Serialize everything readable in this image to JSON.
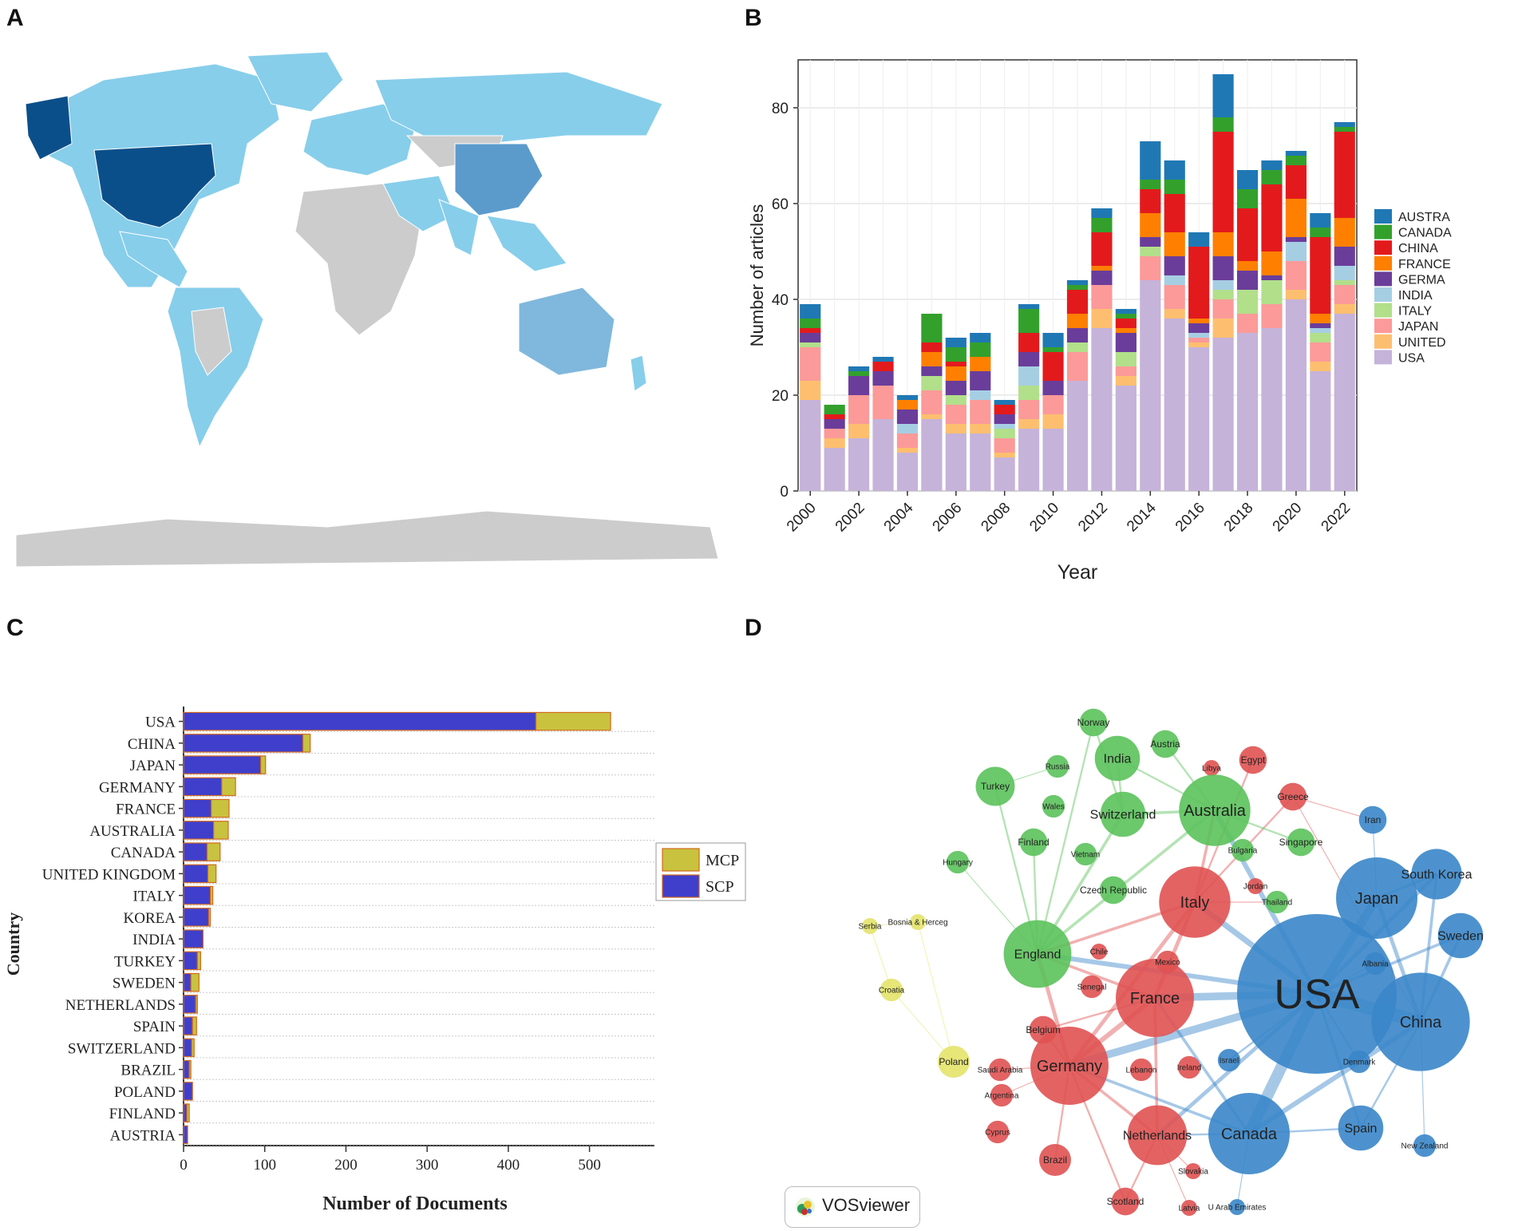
{
  "panels": {
    "a": "A",
    "b": "B",
    "c": "C",
    "d": "D"
  },
  "map": {
    "colors": {
      "ocean": "#ffffff",
      "no_data": "#cccccc",
      "light": "#87ceeb",
      "mid": "#7fb8dc",
      "dark": "#0b4f8a",
      "china": "#5b9bcc"
    }
  },
  "chart_data": [
    {
      "type": "bar",
      "stacked": true,
      "xlabel": "Year",
      "ylabel": "Number of articles",
      "ylim": [
        0,
        90
      ],
      "yticks": [
        0,
        20,
        40,
        60,
        80
      ],
      "xticks": [
        "2000",
        "2002",
        "2004",
        "2006",
        "2008",
        "2010",
        "2012",
        "2014",
        "2016",
        "2018",
        "2020",
        "2022"
      ],
      "categories": [
        "2000",
        "2001",
        "2002",
        "2003",
        "2004",
        "2005",
        "2006",
        "2007",
        "2008",
        "2009",
        "2010",
        "2011",
        "2012",
        "2013",
        "2014",
        "2015",
        "2016",
        "2017",
        "2018",
        "2019",
        "2020",
        "2021",
        "2022"
      ],
      "legend": "right",
      "series": [
        {
          "name": "USA",
          "color": "#c5b3d9",
          "values": [
            19,
            9,
            11,
            15,
            8,
            15,
            12,
            12,
            7,
            13,
            13,
            23,
            34,
            22,
            44,
            36,
            30,
            32,
            33,
            34,
            40,
            25,
            37
          ]
        },
        {
          "name": "UNITED",
          "color": "#fdbf6f",
          "values": [
            4,
            2,
            3,
            0,
            1,
            1,
            2,
            2,
            1,
            2,
            3,
            0,
            4,
            2,
            0,
            2,
            1,
            4,
            0,
            0,
            2,
            2,
            2
          ]
        },
        {
          "name": "JAPAN",
          "color": "#fb9a99",
          "values": [
            7,
            2,
            6,
            7,
            3,
            5,
            4,
            5,
            3,
            4,
            4,
            6,
            5,
            2,
            5,
            5,
            1,
            4,
            4,
            5,
            6,
            4,
            4
          ]
        },
        {
          "name": "ITALY",
          "color": "#b2df8a",
          "values": [
            1,
            0,
            0,
            0,
            0,
            3,
            2,
            0,
            2,
            3,
            0,
            2,
            0,
            3,
            2,
            0,
            0,
            2,
            5,
            5,
            0,
            2,
            1
          ]
        },
        {
          "name": "INDIA",
          "color": "#a6cee3",
          "values": [
            0,
            0,
            0,
            0,
            2,
            0,
            0,
            2,
            1,
            4,
            0,
            0,
            0,
            0,
            0,
            2,
            1,
            2,
            0,
            0,
            4,
            1,
            3
          ]
        },
        {
          "name": "GERMA",
          "color": "#6a3d9a",
          "values": [
            2,
            2,
            4,
            3,
            3,
            2,
            3,
            4,
            2,
            3,
            3,
            3,
            3,
            4,
            2,
            4,
            2,
            5,
            4,
            1,
            1,
            1,
            4
          ]
        },
        {
          "name": "FRANCE",
          "color": "#ff7f00",
          "values": [
            0,
            0,
            0,
            0,
            2,
            3,
            3,
            3,
            0,
            0,
            0,
            3,
            1,
            1,
            5,
            5,
            1,
            5,
            2,
            5,
            8,
            2,
            6
          ]
        },
        {
          "name": "CHINA",
          "color": "#e31a1c",
          "values": [
            1,
            1,
            0,
            2,
            0,
            2,
            1,
            0,
            2,
            4,
            6,
            5,
            7,
            2,
            5,
            8,
            15,
            21,
            11,
            14,
            7,
            16,
            18
          ]
        },
        {
          "name": "CANADA",
          "color": "#33a02c",
          "values": [
            2,
            2,
            1,
            0,
            0,
            6,
            3,
            3,
            0,
            5,
            1,
            1,
            3,
            1,
            2,
            3,
            0,
            3,
            4,
            3,
            2,
            2,
            1
          ]
        },
        {
          "name": "AUSTRA",
          "color": "#1f78b4",
          "values": [
            3,
            0,
            1,
            1,
            1,
            0,
            2,
            2,
            1,
            1,
            3,
            1,
            2,
            1,
            8,
            4,
            3,
            9,
            4,
            2,
            1,
            3,
            1
          ]
        }
      ]
    },
    {
      "type": "bar",
      "orientation": "horizontal",
      "stacked": true,
      "xlabel": "Number of Documents",
      "ylabel": "Country",
      "xlim": [
        0,
        580
      ],
      "xticks": [
        0,
        100,
        200,
        300,
        400,
        500
      ],
      "categories": [
        "USA",
        "CHINA",
        "JAPAN",
        "GERMANY",
        "FRANCE",
        "AUSTRALIA",
        "CANADA",
        "UNITED KINGDOM",
        "ITALY",
        "KOREA",
        "INDIA",
        "TURKEY",
        "SWEDEN",
        "NETHERLANDS",
        "SPAIN",
        "SWITZERLAND",
        "BRAZIL",
        "POLAND",
        "FINLAND",
        "AUSTRIA"
      ],
      "legend": "right",
      "series": [
        {
          "name": "SCP",
          "color": "#3f3fcc",
          "values": [
            434,
            147,
            95,
            47,
            34,
            37,
            29,
            30,
            33,
            31,
            24,
            17,
            9,
            15,
            11,
            10,
            7,
            11,
            4,
            5
          ]
        },
        {
          "name": "MCP",
          "color": "#c9c23e",
          "values": [
            92,
            9,
            6,
            17,
            22,
            18,
            16,
            10,
            3,
            2,
            0,
            4,
            10,
            2,
            5,
            3,
            2,
            0,
            3,
            0
          ]
        }
      ]
    },
    {
      "type": "network",
      "title": "VOSviewer",
      "clusters": [
        {
          "name": "blue",
          "color": "#3a86c9"
        },
        {
          "name": "red",
          "color": "#e05252"
        },
        {
          "name": "green",
          "color": "#5bc25b"
        },
        {
          "name": "yellow",
          "color": "#e3e36a"
        }
      ],
      "nodes": [
        {
          "id": "USA",
          "label": "USA",
          "cluster": "blue",
          "weight": 100
        },
        {
          "id": "China",
          "label": "China",
          "cluster": "blue",
          "weight": 38
        },
        {
          "id": "Japan",
          "label": "Japan",
          "cluster": "blue",
          "weight": 26
        },
        {
          "id": "Canada",
          "label": "Canada",
          "cluster": "blue",
          "weight": 26
        },
        {
          "id": "SouthKorea",
          "label": "South Korea",
          "cluster": "blue",
          "weight": 10
        },
        {
          "id": "Sweden",
          "label": "Sweden",
          "cluster": "blue",
          "weight": 8
        },
        {
          "id": "Spain",
          "label": "Spain",
          "cluster": "blue",
          "weight": 8
        },
        {
          "id": "Iran",
          "label": "Iran",
          "cluster": "blue",
          "weight": 3
        },
        {
          "id": "Albania",
          "label": "Albania",
          "cluster": "blue",
          "weight": 2
        },
        {
          "id": "Denmark",
          "label": "Denmark",
          "cluster": "blue",
          "weight": 2
        },
        {
          "id": "NewZealand",
          "label": "New Zealand",
          "cluster": "blue",
          "weight": 2
        },
        {
          "id": "Israel",
          "label": "Israel",
          "cluster": "blue",
          "weight": 2
        },
        {
          "id": "UAE",
          "label": "U Arab Emirates",
          "cluster": "blue",
          "weight": 1
        },
        {
          "id": "France",
          "label": "France",
          "cluster": "red",
          "weight": 24
        },
        {
          "id": "Germany",
          "label": "Germany",
          "cluster": "red",
          "weight": 24
        },
        {
          "id": "Italy",
          "label": "Italy",
          "cluster": "red",
          "weight": 20
        },
        {
          "id": "Netherlands",
          "label": "Netherlands",
          "cluster": "red",
          "weight": 14
        },
        {
          "id": "Brazil",
          "label": "Brazil",
          "cluster": "red",
          "weight": 4
        },
        {
          "id": "Scotland",
          "label": "Scotland",
          "cluster": "red",
          "weight": 3
        },
        {
          "id": "Belgium",
          "label": "Belgium",
          "cluster": "red",
          "weight": 3
        },
        {
          "id": "Egypt",
          "label": "Egypt",
          "cluster": "red",
          "weight": 3
        },
        {
          "id": "Greece",
          "label": "Greece",
          "cluster": "red",
          "weight": 3
        },
        {
          "id": "Mexico",
          "label": "Mexico",
          "cluster": "red",
          "weight": 2
        },
        {
          "id": "Lebanon",
          "label": "Lebanon",
          "cluster": "red",
          "weight": 2
        },
        {
          "id": "Ireland",
          "label": "Ireland",
          "cluster": "red",
          "weight": 2
        },
        {
          "id": "SaudiArabia",
          "label": "Saudi Arabia",
          "cluster": "red",
          "weight": 2
        },
        {
          "id": "Argentina",
          "label": "Argentina",
          "cluster": "red",
          "weight": 2
        },
        {
          "id": "Cyprus",
          "label": "Cyprus",
          "cluster": "red",
          "weight": 2
        },
        {
          "id": "Slovakia",
          "label": "Slovakia",
          "cluster": "red",
          "weight": 1
        },
        {
          "id": "Latvia",
          "label": "Latvia",
          "cluster": "red",
          "weight": 1
        },
        {
          "id": "Senegal",
          "label": "Senegal",
          "cluster": "red",
          "weight": 2
        },
        {
          "id": "Chile",
          "label": "Chile",
          "cluster": "red",
          "weight": 1
        },
        {
          "id": "Jordan",
          "label": "Jordan",
          "cluster": "red",
          "weight": 1
        },
        {
          "id": "Libya",
          "label": "Libya",
          "cluster": "red",
          "weight": 1
        },
        {
          "id": "England",
          "label": "England",
          "cluster": "green",
          "weight": 18
        },
        {
          "id": "Australia",
          "label": "Australia",
          "cluster": "green",
          "weight": 20
        },
        {
          "id": "Switzerland",
          "label": "Switzerland",
          "cluster": "green",
          "weight": 8
        },
        {
          "id": "India",
          "label": "India",
          "cluster": "green",
          "weight": 8
        },
        {
          "id": "Turkey",
          "label": "Turkey",
          "cluster": "green",
          "weight": 6
        },
        {
          "id": "Norway",
          "label": "Norway",
          "cluster": "green",
          "weight": 3
        },
        {
          "id": "Austria",
          "label": "Austria",
          "cluster": "green",
          "weight": 3
        },
        {
          "id": "Russia",
          "label": "Russia",
          "cluster": "green",
          "weight": 2
        },
        {
          "id": "Wales",
          "label": "Wales",
          "cluster": "green",
          "weight": 2
        },
        {
          "id": "Finland",
          "label": "Finland",
          "cluster": "green",
          "weight": 3
        },
        {
          "id": "Vietnam",
          "label": "Vietnam",
          "cluster": "green",
          "weight": 2
        },
        {
          "id": "Hungary",
          "label": "Hungary",
          "cluster": "green",
          "weight": 2
        },
        {
          "id": "CzechRepublic",
          "label": "Czech Republic",
          "cluster": "green",
          "weight": 3
        },
        {
          "id": "Bulgaria",
          "label": "Bulgaria",
          "cluster": "green",
          "weight": 2
        },
        {
          "id": "Singapore",
          "label": "Singapore",
          "cluster": "green",
          "weight": 3
        },
        {
          "id": "Thailand",
          "label": "Thailand",
          "cluster": "green",
          "weight": 2
        },
        {
          "id": "Serbia",
          "label": "Serbia",
          "cluster": "yellow",
          "weight": 1
        },
        {
          "id": "Bosnia",
          "label": "Bosnia & Herceg",
          "cluster": "yellow",
          "weight": 1
        },
        {
          "id": "Croatia",
          "label": "Croatia",
          "cluster": "yellow",
          "weight": 2
        },
        {
          "id": "Poland",
          "label": "Poland",
          "cluster": "yellow",
          "weight": 4
        }
      ]
    }
  ]
}
